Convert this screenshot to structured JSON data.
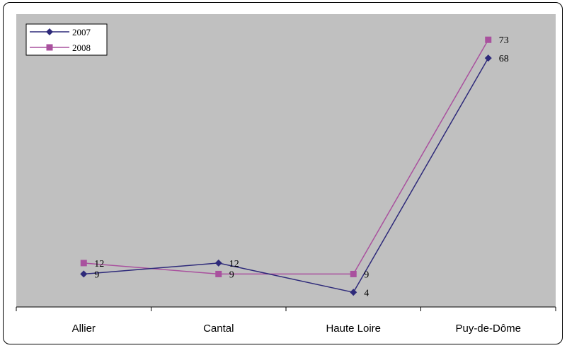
{
  "chart_data": {
    "type": "line",
    "categories": [
      "Allier",
      "Cantal",
      "Haute Loire",
      "Puy-de-Dôme"
    ],
    "series": [
      {
        "name": "2007",
        "values": [
          9,
          12,
          4,
          68
        ],
        "color": "#2E2A7A",
        "marker": "diamond"
      },
      {
        "name": "2008",
        "values": [
          12,
          9,
          9,
          73
        ],
        "color": "#A9519E",
        "marker": "square"
      }
    ],
    "title": "",
    "xlabel": "",
    "ylabel": "",
    "ylim": [
      0,
      80
    ],
    "plot_background": "#C0C0C0",
    "grid": false,
    "legend_position": "top-left"
  }
}
